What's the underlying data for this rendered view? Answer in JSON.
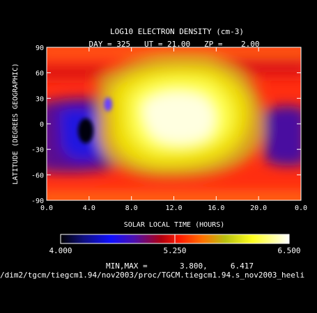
{
  "chart_data": {
    "type": "heatmap",
    "title": "LOG10 ELECTRON DENSITY (cm-3)",
    "subtitle": "DAY = 325   UT = 21.00   ZP =    2.00",
    "xlabel": "SOLAR LOCAL TIME (HOURS)",
    "ylabel": "LATITUDE (DEGREES GEOGRAPHIC)",
    "x_ticks": [
      "0.0",
      "4.0",
      "8.0",
      "12.0",
      "16.0",
      "20.0",
      "0.0"
    ],
    "y_ticks": [
      "90",
      "60",
      "30",
      "0",
      "-30",
      "-60",
      "-90"
    ],
    "xlim": [
      0,
      24
    ],
    "ylim": [
      -90,
      90
    ],
    "colorbar": {
      "min_label": "4.000",
      "mid_label": "5.250",
      "max_label": "6.500",
      "range": [
        4.0,
        6.5
      ]
    },
    "minmax_text": "MIN,MAX =       3.800,     6.417",
    "footer_path": "/dim2/tgcm/tiegcm1.94/nov2003/proc/TGCM.tiegcm1.94.s_nov2003_heeli",
    "features": [
      {
        "kind": "dayside-peak",
        "lt": 12.5,
        "lat": 20,
        "value": 6.4
      },
      {
        "kind": "night-minimum",
        "lt": 3.6,
        "lat": -5,
        "value": 3.8
      },
      {
        "kind": "night-minimum",
        "lt": 23.0,
        "lat": -20,
        "value": 4.2
      }
    ]
  }
}
